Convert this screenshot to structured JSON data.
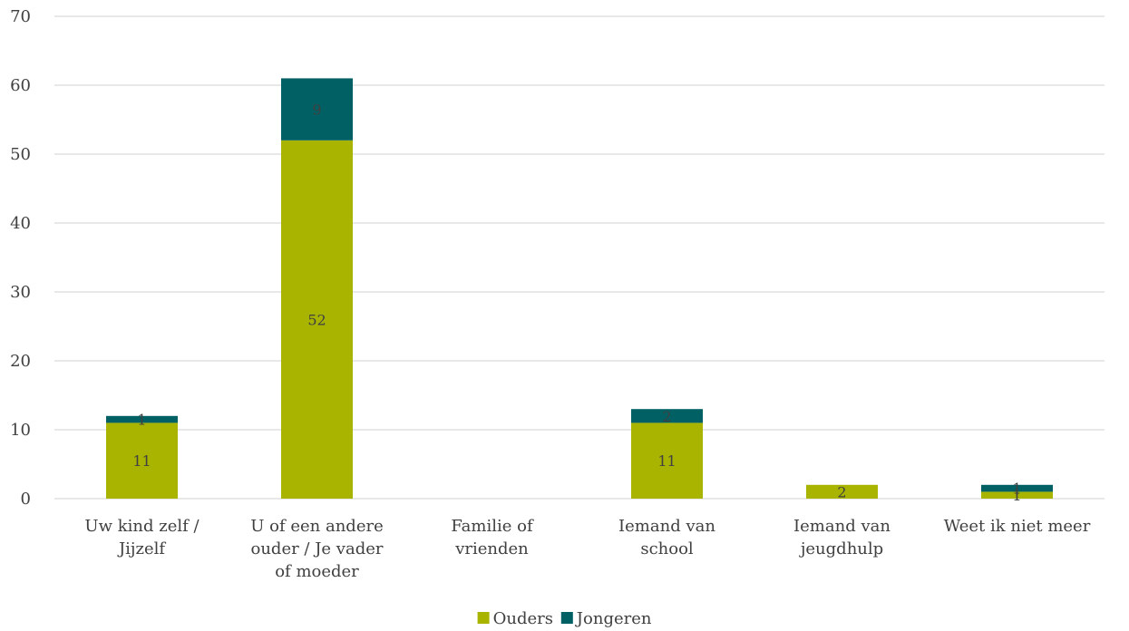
{
  "chart_data": {
    "type": "bar",
    "stacked": true,
    "categories": [
      [
        "Uw kind zelf /",
        "Jijzelf"
      ],
      [
        "U of een andere",
        "ouder / Je vader",
        "of moeder"
      ],
      [
        "Familie of",
        "vrienden"
      ],
      [
        "Iemand van",
        "school"
      ],
      [
        "Iemand van",
        "jeugdhulp"
      ],
      [
        "Weet ik niet meer"
      ]
    ],
    "series": [
      {
        "name": "Ouders",
        "values": [
          11,
          52,
          0,
          11,
          2,
          1
        ],
        "color": "#a8b400",
        "labels": [
          "11",
          "52",
          "",
          "11",
          "2",
          "1"
        ]
      },
      {
        "name": "Jongeren",
        "values": [
          1,
          9,
          0,
          2,
          0,
          1
        ],
        "color": "#006064",
        "labels": [
          "1",
          "9",
          "",
          "2",
          "",
          "1"
        ]
      }
    ],
    "ylim": [
      0,
      70
    ],
    "yticks": [
      0,
      10,
      20,
      30,
      40,
      50,
      60,
      70
    ],
    "grid": true,
    "legend_position": "bottom-center",
    "title": "",
    "xlabel": "",
    "ylabel": ""
  }
}
